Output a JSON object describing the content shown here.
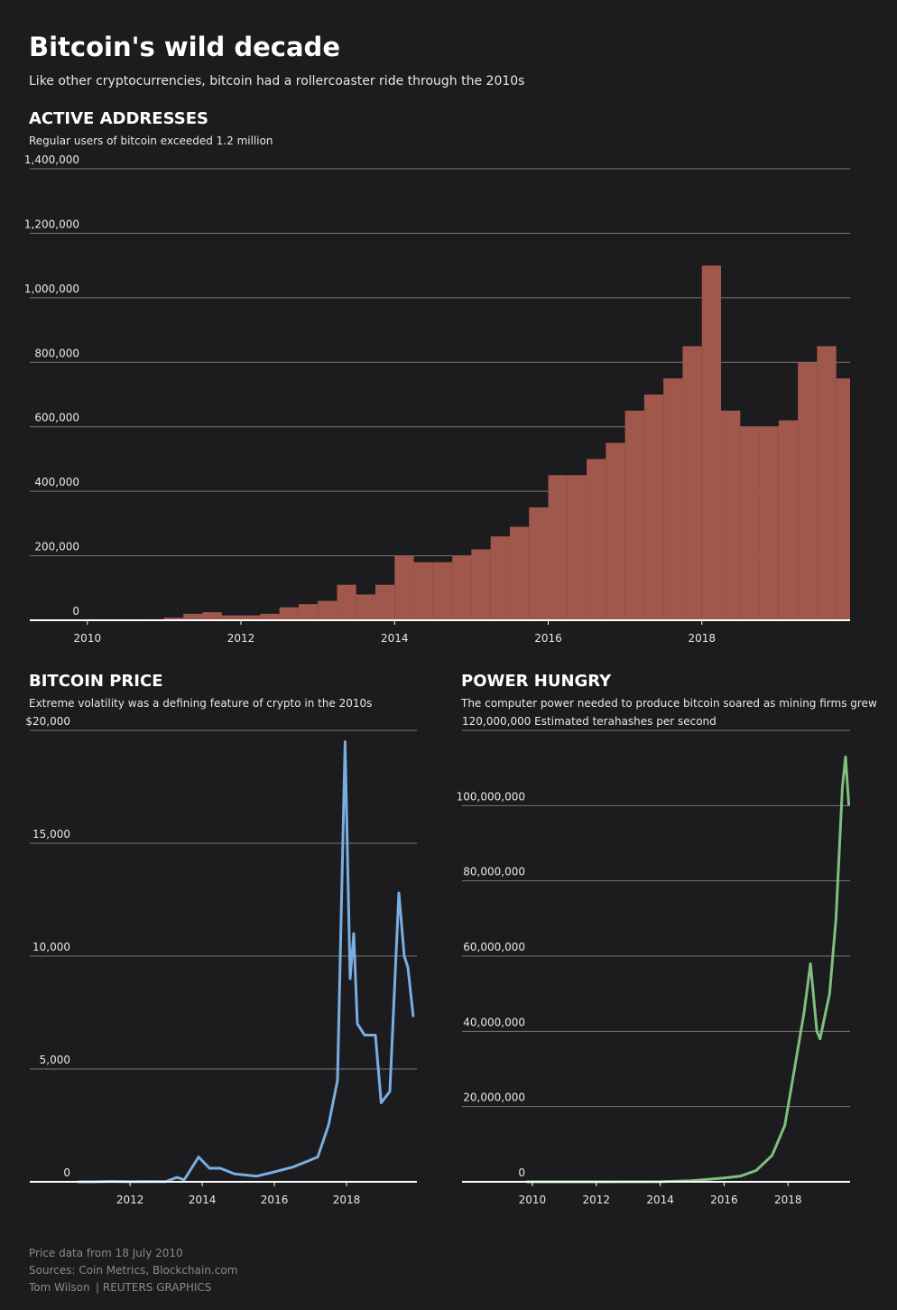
{
  "title": "Bitcoin's wild decade",
  "subtitle": "Like other cryptocurrencies, bitcoin had a rollercoaster ride through the 2010s",
  "chart_data": [
    {
      "type": "bar",
      "title": "ACTIVE ADDRESSES",
      "subtitle": "Regular users of bitcoin exceeded 1.2 million",
      "color": "#a0574c",
      "x": [
        2010.0,
        2010.25,
        2010.5,
        2010.75,
        2011.0,
        2011.25,
        2011.5,
        2011.75,
        2012.0,
        2012.25,
        2012.5,
        2012.75,
        2013.0,
        2013.25,
        2013.5,
        2013.75,
        2014.0,
        2014.25,
        2014.5,
        2014.75,
        2015.0,
        2015.25,
        2015.5,
        2015.75,
        2016.0,
        2016.25,
        2016.5,
        2016.75,
        2017.0,
        2017.25,
        2017.5,
        2017.75,
        2018.0,
        2018.25,
        2018.5,
        2018.75,
        2019.0,
        2019.25,
        2019.5,
        2019.75
      ],
      "values": [
        500,
        1000,
        2000,
        3000,
        8000,
        20000,
        25000,
        15000,
        15000,
        20000,
        40000,
        50000,
        60000,
        110000,
        80000,
        110000,
        200000,
        180000,
        180000,
        200000,
        220000,
        260000,
        290000,
        350000,
        450000,
        450000,
        500000,
        550000,
        650000,
        700000,
        750000,
        850000,
        1100000,
        650000,
        600000,
        600000,
        620000,
        800000,
        850000,
        750000
      ],
      "xlim": [
        2009.25,
        2019.93
      ],
      "xticks": [
        2010,
        2012,
        2014,
        2016,
        2018
      ],
      "ylim": [
        0,
        1400000
      ],
      "yticks": [
        0,
        {
          "value": 200000,
          "label": "200,000"
        },
        {
          "value": 400000,
          "label": "400,000"
        },
        {
          "value": 600000,
          "label": "600,000"
        },
        {
          "value": 800000,
          "label": "800,000"
        },
        {
          "value": 1000000,
          "label": "1,000,000"
        },
        {
          "value": 1200000,
          "label": "1,200,000"
        },
        {
          "value": 1400000,
          "label": "1,400,000"
        }
      ],
      "grid": true
    },
    {
      "type": "line",
      "title": "BITCOIN PRICE",
      "subtitle": "Extreme volatility was a defining feature of crypto in the 2010s",
      "color": "#79aee0",
      "x": [
        2010.55,
        2011.0,
        2011.45,
        2012.0,
        2012.5,
        2013.0,
        2013.3,
        2013.5,
        2013.9,
        2014.2,
        2014.5,
        2014.9,
        2015.5,
        2015.9,
        2016.5,
        2016.9,
        2017.2,
        2017.5,
        2017.75,
        2017.96,
        2018.1,
        2018.2,
        2018.3,
        2018.5,
        2018.8,
        2018.96,
        2019.2,
        2019.45,
        2019.6,
        2019.7,
        2019.85
      ],
      "values": [
        0.1,
        0.3,
        15,
        5,
        7,
        13,
        200,
        90,
        1100,
        600,
        600,
        350,
        250,
        400,
        650,
        900,
        1100,
        2500,
        4500,
        19500,
        9000,
        11000,
        7000,
        6500,
        6500,
        3500,
        4000,
        12800,
        10000,
        9500,
        7300
      ],
      "xlim": [
        2009.22,
        2019.95
      ],
      "xticks": [
        2012,
        2014,
        2016,
        2018
      ],
      "ylim": [
        0,
        20000
      ],
      "yticks": [
        0,
        {
          "value": 5000,
          "label": "5,000"
        },
        {
          "value": 10000,
          "label": "10,000"
        },
        {
          "value": 15000,
          "label": "15,000"
        },
        {
          "value": 20000,
          "label": "$20,000"
        }
      ],
      "grid": true
    },
    {
      "type": "line",
      "title": "POWER HUNGRY",
      "subtitle": "The computer power needed to produce bitcoin soared as mining firms grew",
      "color": "#7fbf7f",
      "x": [
        2009.8,
        2012.0,
        2014.0,
        2015.0,
        2016.0,
        2016.5,
        2017.0,
        2017.5,
        2017.9,
        2018.2,
        2018.5,
        2018.7,
        2018.9,
        2019.0,
        2019.3,
        2019.5,
        2019.7,
        2019.8,
        2019.9
      ],
      "values": [
        0,
        0,
        20000,
        300000,
        1000000,
        1500000,
        3000000,
        7000000,
        15000000,
        30000000,
        45000000,
        58000000,
        40000000,
        38000000,
        50000000,
        70000000,
        105000000,
        113000000,
        100000000
      ],
      "xlim": [
        2007.8,
        2019.94
      ],
      "xticks": [
        2010,
        2012,
        2014,
        2016,
        2018
      ],
      "ylim": [
        0,
        120000000
      ],
      "yticks": [
        0,
        {
          "value": 20000000,
          "label": "20,000,000"
        },
        {
          "value": 40000000,
          "label": "40,000,000"
        },
        {
          "value": 60000000,
          "label": "60,000,000"
        },
        {
          "value": 80000000,
          "label": "80,000,000"
        },
        {
          "value": 100000000,
          "label": "100,000,000"
        },
        {
          "value": 120000000,
          "label": "120,000,000 Estimated terahashes per second"
        }
      ],
      "grid": true
    }
  ],
  "footer": [
    "Price data from 18 July 2010",
    "Sources: Coin Metrics, Blockchain.com",
    "Tom Wilson",
    "| REUTERS GRAPHICS"
  ]
}
